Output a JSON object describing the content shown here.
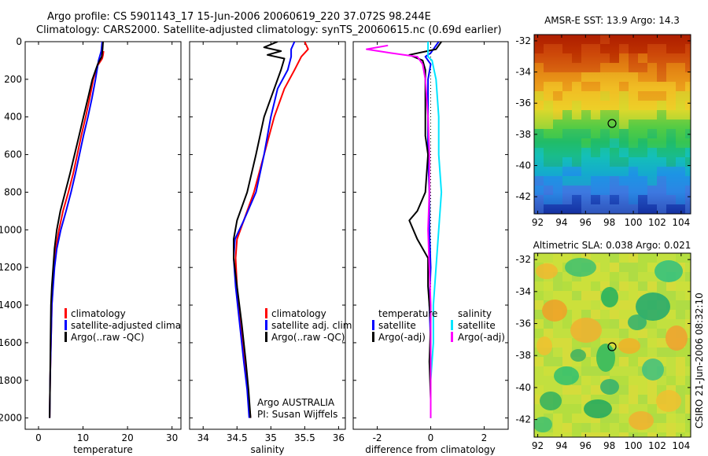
{
  "figure": {
    "title_line1": "Argo profile: CS 5901143_17 15-Jun-2006 20060619_220 37.072S 98.244E",
    "title_line2": "Climatology: CARS2000. Satellite-adjusted climatology: synTS_20060615.nc (0.69d earlier)",
    "credit": "CSIRO 21-Jun-2006 08:32:10",
    "annotation_line1": "Argo AUSTRALIA",
    "annotation_line2": "PI: Susan Wijffels"
  },
  "colors": {
    "climatology": "#ff0000",
    "satellite": "#0000ff",
    "argo": "#000000",
    "salinity_sat": "#00e5ff",
    "salinity_argo": "#ff00ff"
  },
  "chart_data": [
    {
      "type": "line",
      "name": "temperature-profile",
      "xlabel": "temperature",
      "xticks": [
        "0",
        "10",
        "20",
        "30"
      ],
      "xlim": [
        -3,
        32
      ],
      "yticks": [
        "0",
        "200",
        "400",
        "600",
        "800",
        "1000",
        "1200",
        "1400",
        "1600",
        "1800",
        "2000"
      ],
      "ylim": [
        0,
        2060
      ],
      "y_reversed": true,
      "legend": [
        "climatology",
        "satellite-adjusted climatology",
        "Argo(..raw -QC)"
      ],
      "series": [
        {
          "name": "climatology",
          "color": "#ff0000",
          "points": [
            [
              14.6,
              50
            ],
            [
              14.5,
              70
            ],
            [
              14.3,
              90
            ],
            [
              13.2,
              130
            ],
            [
              12.3,
              200
            ],
            [
              11.5,
              300
            ],
            [
              10.6,
              400
            ],
            [
              9.6,
              500
            ],
            [
              8.7,
              600
            ],
            [
              7.8,
              700
            ],
            [
              6.7,
              800
            ],
            [
              5.5,
              900
            ],
            [
              4.6,
              1000
            ],
            [
              3.9,
              1100
            ],
            [
              3.5,
              1200
            ],
            [
              3.2,
              1300
            ],
            [
              3,
              1400
            ],
            [
              2.8,
              1600
            ],
            [
              2.6,
              1800
            ],
            [
              2.5,
              2000
            ]
          ]
        },
        {
          "name": "satellite-adjusted climatology",
          "color": "#0000ff",
          "points": [
            [
              14.3,
              0
            ],
            [
              14.1,
              50
            ],
            [
              13.5,
              100
            ],
            [
              12.8,
              200
            ],
            [
              12,
              300
            ],
            [
              11.1,
              400
            ],
            [
              10.1,
              500
            ],
            [
              9.2,
              600
            ],
            [
              8.3,
              700
            ],
            [
              7.3,
              800
            ],
            [
              6.2,
              900
            ],
            [
              5,
              1000
            ],
            [
              4.1,
              1100
            ],
            [
              3.6,
              1200
            ],
            [
              3.3,
              1300
            ],
            [
              3,
              1400
            ],
            [
              2.8,
              1600
            ],
            [
              2.6,
              1800
            ],
            [
              2.5,
              2000
            ]
          ]
        },
        {
          "name": "Argo(..raw -QC)",
          "color": "#000000",
          "points": [
            [
              14.5,
              0
            ],
            [
              14.4,
              40
            ],
            [
              14.2,
              80
            ],
            [
              13.3,
              120
            ],
            [
              12.1,
              200
            ],
            [
              11.1,
              300
            ],
            [
              10.1,
              400
            ],
            [
              9.1,
              500
            ],
            [
              8.1,
              600
            ],
            [
              7.1,
              700
            ],
            [
              6,
              800
            ],
            [
              4.9,
              900
            ],
            [
              4.1,
              1000
            ],
            [
              3.6,
              1100
            ],
            [
              3.3,
              1200
            ],
            [
              3,
              1300
            ],
            [
              2.8,
              1400
            ],
            [
              2.7,
              1600
            ],
            [
              2.6,
              1800
            ],
            [
              2.5,
              2000
            ]
          ]
        }
      ]
    },
    {
      "type": "line",
      "name": "salinity-profile",
      "xlabel": "salinity",
      "xticks": [
        "34",
        "34.5",
        "35",
        "35.5",
        "36"
      ],
      "xlim": [
        33.8,
        36.1
      ],
      "ylim": [
        0,
        2060
      ],
      "y_reversed": true,
      "legend": [
        "climatology",
        "satellite adj. clim.",
        "Argo(..raw -QC)"
      ],
      "series": [
        {
          "name": "climatology",
          "color": "#ff0000",
          "points": [
            [
              35.5,
              0
            ],
            [
              35.55,
              40
            ],
            [
              35.45,
              80
            ],
            [
              35.35,
              150
            ],
            [
              35.2,
              250
            ],
            [
              35.05,
              400
            ],
            [
              34.9,
              600
            ],
            [
              34.75,
              800
            ],
            [
              34.6,
              950
            ],
            [
              34.5,
              1050
            ],
            [
              34.48,
              1150
            ],
            [
              34.5,
              1300
            ],
            [
              34.55,
              1500
            ],
            [
              34.62,
              1700
            ],
            [
              34.66,
              1850
            ],
            [
              34.7,
              2000
            ]
          ]
        },
        {
          "name": "satellite adj. clim.",
          "color": "#0000ff",
          "points": [
            [
              35.35,
              0
            ],
            [
              35.3,
              40
            ],
            [
              35.3,
              80
            ],
            [
              35.25,
              150
            ],
            [
              35.1,
              250
            ],
            [
              35,
              400
            ],
            [
              34.9,
              600
            ],
            [
              34.78,
              800
            ],
            [
              34.6,
              950
            ],
            [
              34.47,
              1050
            ],
            [
              34.45,
              1150
            ],
            [
              34.48,
              1300
            ],
            [
              34.54,
              1500
            ],
            [
              34.6,
              1700
            ],
            [
              34.65,
              1850
            ],
            [
              34.68,
              2000
            ]
          ]
        },
        {
          "name": "Argo(..raw -QC)",
          "color": "#000000",
          "points": [
            [
              35.1,
              0
            ],
            [
              34.9,
              30
            ],
            [
              35.15,
              50
            ],
            [
              34.95,
              70
            ],
            [
              35.2,
              90
            ],
            [
              35.15,
              150
            ],
            [
              35.05,
              250
            ],
            [
              34.9,
              400
            ],
            [
              34.78,
              600
            ],
            [
              34.65,
              800
            ],
            [
              34.5,
              950
            ],
            [
              34.45,
              1050
            ],
            [
              34.45,
              1150
            ],
            [
              34.5,
              1300
            ],
            [
              34.57,
              1500
            ],
            [
              34.63,
              1700
            ],
            [
              34.67,
              1850
            ],
            [
              34.7,
              2000
            ]
          ]
        }
      ]
    },
    {
      "type": "line",
      "name": "difference-profile",
      "xlabel": "difference from climatology",
      "xticks": [
        "-2",
        "0",
        "2"
      ],
      "xlim": [
        -2.9,
        2.9
      ],
      "ylim": [
        0,
        2060
      ],
      "y_reversed": true,
      "legend_temperature_heading": "temperature",
      "legend_salinity_heading": "salinity",
      "legend_temperature": [
        "satellite",
        "Argo(-adj)"
      ],
      "legend_salinity": [
        "satellite",
        "Argo(-adj)"
      ],
      "series": [
        {
          "name": "temperature satellite",
          "color": "#0000ff",
          "points": [
            [
              0.3,
              0
            ],
            [
              0,
              60
            ],
            [
              -0.2,
              80
            ],
            [
              0,
              120
            ],
            [
              -0.1,
              200
            ],
            [
              -0.1,
              400
            ],
            [
              -0.1,
              600
            ],
            [
              -0.05,
              800
            ],
            [
              -0.05,
              1000
            ],
            [
              0,
              1200
            ],
            [
              -0.05,
              1400
            ],
            [
              0,
              1600
            ],
            [
              0,
              1800
            ],
            [
              0,
              2000
            ]
          ]
        },
        {
          "name": "temperature Argo(-adj)",
          "color": "#000000",
          "points": [
            [
              0.4,
              0
            ],
            [
              0.2,
              40
            ],
            [
              -0.8,
              70
            ],
            [
              -0.3,
              100
            ],
            [
              -0.2,
              150
            ],
            [
              -0.2,
              300
            ],
            [
              -0.2,
              500
            ],
            [
              -0.1,
              600
            ],
            [
              -0.2,
              800
            ],
            [
              -0.5,
              900
            ],
            [
              -0.8,
              950
            ],
            [
              -0.5,
              1050
            ],
            [
              -0.1,
              1150
            ],
            [
              -0.1,
              1300
            ],
            [
              0,
              1500
            ],
            [
              -0.05,
              1700
            ],
            [
              0,
              1900
            ],
            [
              0,
              2000
            ]
          ]
        },
        {
          "name": "salinity satellite",
          "color": "#00e5ff",
          "points": [
            [
              -0.1,
              0
            ],
            [
              -0.1,
              80
            ],
            [
              0.05,
              100
            ],
            [
              0.2,
              200
            ],
            [
              0.3,
              400
            ],
            [
              0.3,
              600
            ],
            [
              0.4,
              800
            ],
            [
              0.3,
              1000
            ],
            [
              0.2,
              1200
            ],
            [
              0.1,
              1400
            ],
            [
              0.1,
              1600
            ],
            [
              0,
              1800
            ],
            [
              0,
              2000
            ]
          ]
        },
        {
          "name": "salinity Argo(-adj)",
          "color": "#ff00ff",
          "points": [
            [
              -1.6,
              20
            ],
            [
              -2.4,
              40
            ],
            [
              -1.5,
              60
            ],
            [
              -0.5,
              80
            ],
            [
              -0.3,
              120
            ],
            [
              -0.2,
              200
            ],
            [
              -0.1,
              400
            ],
            [
              -0.05,
              600
            ],
            [
              -0.05,
              800
            ],
            [
              -0.1,
              1000
            ],
            [
              -0.05,
              1200
            ],
            [
              0,
              1400
            ],
            [
              0,
              1600
            ],
            [
              0,
              1800
            ],
            [
              0,
              2000
            ]
          ]
        }
      ]
    },
    {
      "type": "heatmap",
      "name": "sst-map",
      "title": "AMSR-E SST: 13.9 Argo: 14.3",
      "xticks": [
        "92",
        "94",
        "96",
        "98",
        "100",
        "102",
        "104"
      ],
      "yticks": [
        "-32",
        "-34",
        "-36",
        "-38",
        "-40",
        "-42"
      ],
      "xlim": [
        91.7,
        104.8
      ],
      "ylim": [
        -43.1,
        -31.6
      ],
      "argo_position": [
        98.244,
        -37.072
      ]
    },
    {
      "type": "heatmap",
      "name": "sla-map",
      "title": "Altimetric SLA: 0.038 Argo: 0.021",
      "xticks": [
        "92",
        "94",
        "96",
        "98",
        "100",
        "102",
        "104"
      ],
      "yticks": [
        "-32",
        "-34",
        "-36",
        "-38",
        "-40",
        "-42"
      ],
      "xlim": [
        91.7,
        104.8
      ],
      "ylim": [
        -43.1,
        -31.6
      ],
      "argo_position": [
        98.244,
        -37.072
      ]
    }
  ]
}
